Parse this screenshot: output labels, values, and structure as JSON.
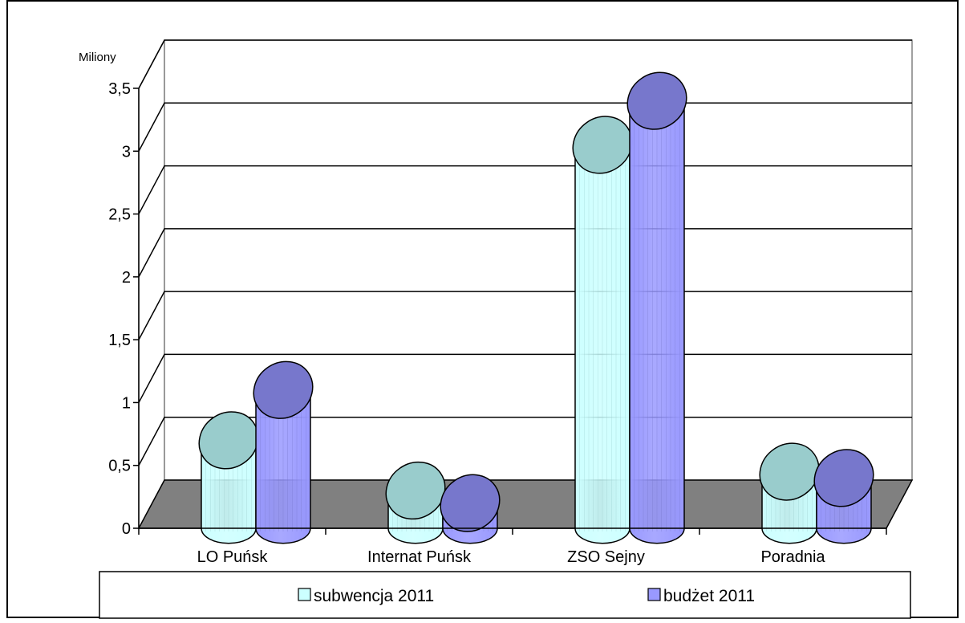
{
  "chart_data": {
    "type": "bar",
    "style": "3d-cylinder",
    "unit_label": "Miliony",
    "categories": [
      "LO Puńsk",
      "Internat Puńsk",
      "ZSO Sejny",
      "Poradnia"
    ],
    "series": [
      {
        "name": "subwencja 2011",
        "values": [
          0.7,
          0.3,
          3.05,
          0.45
        ],
        "color_body": "#ccffff",
        "color_top": "#99cccc"
      },
      {
        "name": "budżet 2011",
        "values": [
          1.1,
          0.2,
          3.4,
          0.4
        ],
        "color_body": "#9999ff",
        "color_top": "#7777cc"
      }
    ],
    "y_ticks": [
      "0",
      "0,5",
      "1",
      "1,5",
      "2",
      "2,5",
      "3",
      "3,5"
    ],
    "ylim": [
      0,
      3.5
    ],
    "grid": true,
    "legend_position": "bottom",
    "floor_color": "#808080"
  }
}
